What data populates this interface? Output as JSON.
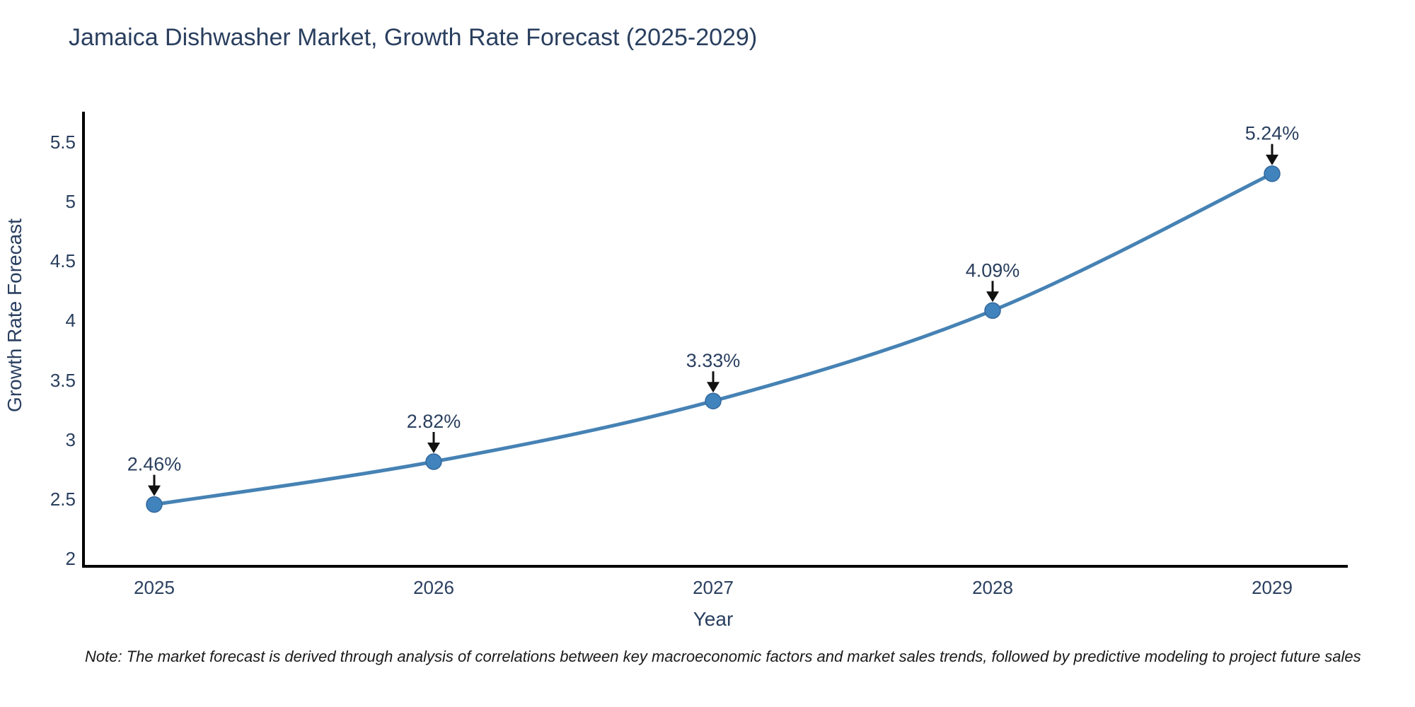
{
  "header": {
    "title": "Jamaica Dishwasher Market, Growth Rate Forecast (2025-2029)"
  },
  "note": {
    "text": "Note: The market forecast is derived through analysis of correlations between key macroeconomic factors and market sales trends, followed by predictive modeling to project future sales"
  },
  "chart_data": {
    "type": "line",
    "title": "Jamaica Dishwasher Market, Growth Rate Forecast (2025-2029)",
    "xlabel": "Year",
    "ylabel": "Growth Rate Forecast",
    "x": [
      2025,
      2026,
      2027,
      2028,
      2029
    ],
    "series": [
      {
        "name": "Growth Rate Forecast",
        "values": [
          2.46,
          2.82,
          3.33,
          4.09,
          5.24
        ]
      }
    ],
    "point_labels": [
      "2.46%",
      "2.82%",
      "3.33%",
      "4.09%",
      "5.24%"
    ],
    "ylim": [
      2,
      5.5
    ],
    "yticks": [
      2,
      2.5,
      3,
      3.5,
      4,
      4.5,
      5,
      5.5
    ],
    "ytick_labels": [
      "2",
      "2.5",
      "3",
      "3.5",
      "4",
      "4.5",
      "5",
      "5.5"
    ],
    "xtick_labels": [
      "2025",
      "2026",
      "2027",
      "2028",
      "2029"
    ],
    "grid": false,
    "legend_position": "none",
    "line_shape": "spline",
    "line_color": "#4682b4",
    "marker_color": "#4183bd",
    "axis_color": "#000000",
    "text_color": "#2a3f5f"
  }
}
